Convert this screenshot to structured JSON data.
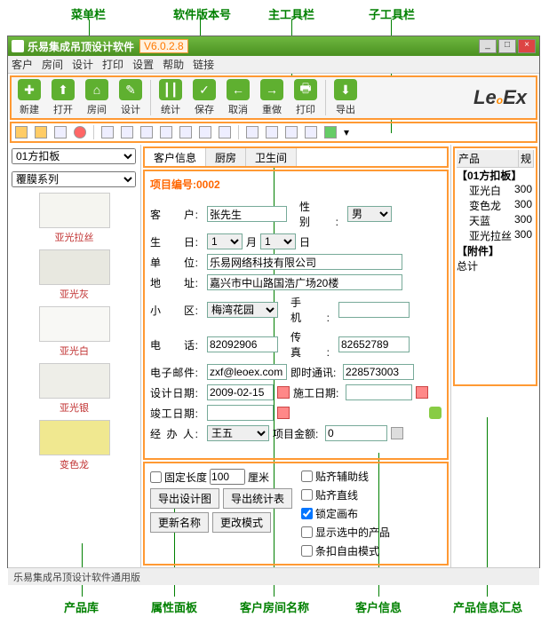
{
  "annotations": {
    "top": [
      "菜单栏",
      "软件版本号",
      "主工具栏",
      "子工具栏"
    ],
    "bottom": [
      "产品库",
      "属性面板",
      "客户房间名称",
      "客户信息",
      "产品信息汇总"
    ]
  },
  "title": {
    "app": "乐易集成吊顶设计软件",
    "version": "V6.0.2.8"
  },
  "menu": [
    "客户",
    "房间",
    "设计",
    "打印",
    "设置",
    "帮助",
    "链接"
  ],
  "toolbar": [
    {
      "icon": "✚",
      "label": "新建"
    },
    {
      "icon": "⬆",
      "label": "打开"
    },
    {
      "icon": "⌂",
      "label": "房间"
    },
    {
      "icon": "✎",
      "label": "设计"
    },
    {
      "sep": true
    },
    {
      "icon": "┃┃",
      "label": "统计"
    },
    {
      "icon": "✓",
      "label": "保存"
    },
    {
      "icon": "←",
      "label": "取消"
    },
    {
      "icon": "→",
      "label": "重做"
    },
    {
      "icon": "🖶",
      "label": "打印"
    },
    {
      "sep": true
    },
    {
      "icon": "⬇",
      "label": "导出"
    }
  ],
  "logo": "LeoEx",
  "left": {
    "sel1": "01方扣板",
    "sel2": "覆膜系列",
    "products": [
      {
        "name": "亚光拉丝",
        "color": "#f5f5f0"
      },
      {
        "name": "亚光灰",
        "color": "#e8e8e0"
      },
      {
        "name": "亚光白",
        "color": "#f8f8f5"
      },
      {
        "name": "亚光银",
        "color": "#eeeee8"
      },
      {
        "name": "变色龙",
        "color": "#f0e890"
      }
    ]
  },
  "tabs": [
    "客户信息",
    "厨房",
    "卫生间"
  ],
  "form": {
    "projLabel": "项目编号:",
    "projNo": "0002",
    "customerLbl": "客　　户:",
    "customer": "张先生",
    "genderLbl": "性　　别:",
    "gender": "男",
    "birthLbl": "生　　日:",
    "bMon": "1",
    "bMonU": "月",
    "bDay": "1",
    "bDayU": "日",
    "unitLbl": "单　　位:",
    "unit": "乐易网络科技有限公司",
    "addrLbl": "地　　址:",
    "addr": "嘉兴市中山路国浩广场20楼",
    "zoneLbl": "小　　区:",
    "zone": "梅湾花园",
    "mobLbl": "手　　机:",
    "mob": "",
    "telLbl": "电　　话:",
    "tel": "82092906",
    "faxLbl": "传　　真:",
    "fax": "82652789",
    "emailLbl": "电子邮件:",
    "email": "zxf@leoex.com",
    "imLbl": "即时通讯:",
    "im": "228573003",
    "ddateLbl": "设计日期:",
    "ddate": "2009-02-15",
    "cdateLbl": "施工日期:",
    "cdate": "",
    "fdateLbl": "竣工日期:",
    "fdate": "",
    "handlerLbl": "经 办 人:",
    "handler": "王五",
    "amtLbl": "项目金额:",
    "amt": "0"
  },
  "opts": {
    "fixLen": "固定长度",
    "fixVal": "100",
    "unit": "厘米",
    "snap": "贴齐辅助线",
    "snapLine": "贴齐直线",
    "lockCanvas": "锁定画布",
    "showSel": "显示选中的产品",
    "freeMode": "条扣自由模式",
    "b1": "导出设计图",
    "b2": "导出统计表",
    "b3": "更新名称",
    "b4": "更改模式"
  },
  "right": {
    "h1": "产品",
    "h2": "规",
    "group": "【01方扣板】",
    "rows": [
      [
        "亚光白",
        "300"
      ],
      [
        "变色龙",
        "300"
      ],
      [
        "天蓝",
        "300"
      ],
      [
        "亚光拉丝",
        "300"
      ]
    ],
    "attach": "【附件】",
    "total": "总计"
  },
  "status": "乐易集成吊顶设计软件通用版"
}
